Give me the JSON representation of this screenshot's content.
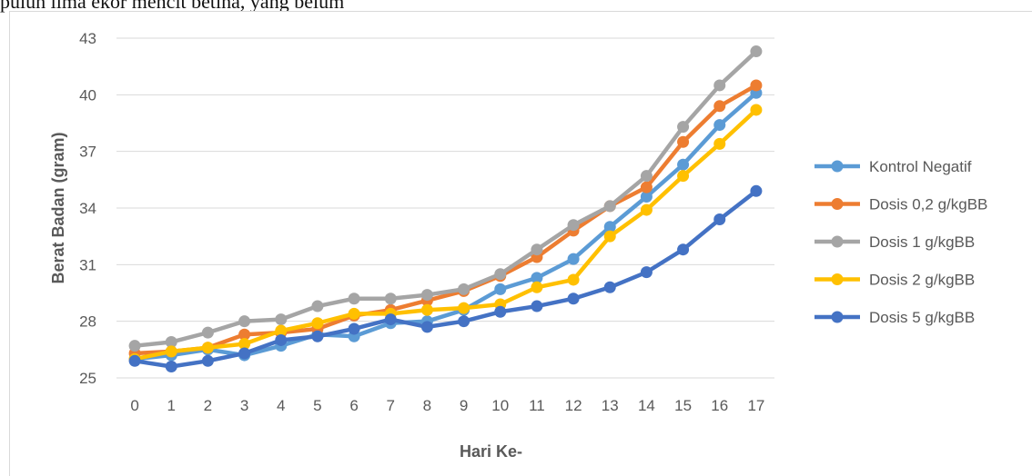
{
  "document": {
    "header_text": "puluh lima ekor mencit betina, yang belum"
  },
  "chart_data": {
    "type": "line",
    "xlabel": "Hari Ke-",
    "ylabel": "Berat Badan (gram)",
    "ylim": [
      25,
      43
    ],
    "yticks": [
      25,
      28,
      31,
      34,
      37,
      40,
      43
    ],
    "grid": true,
    "legend_position": "right",
    "categories": [
      "0",
      "1",
      "2",
      "3",
      "4",
      "5",
      "6",
      "7",
      "8",
      "9",
      "10",
      "11",
      "12",
      "13",
      "14",
      "15",
      "16",
      "17"
    ],
    "series": [
      {
        "name": "Kontrol Negatif",
        "color": "#5B9BD5",
        "values": [
          26.0,
          26.2,
          26.5,
          26.2,
          26.7,
          27.3,
          27.2,
          27.9,
          28.0,
          28.6,
          29.7,
          30.3,
          31.3,
          33.0,
          34.6,
          36.3,
          38.4,
          40.1
        ]
      },
      {
        "name": "Dosis 0,2 g/kgBB",
        "color": "#ED7D31",
        "values": [
          26.3,
          26.4,
          26.6,
          27.3,
          27.4,
          27.6,
          28.3,
          28.6,
          29.1,
          29.6,
          30.4,
          31.4,
          32.8,
          34.1,
          35.1,
          37.5,
          39.4,
          40.5
        ]
      },
      {
        "name": "Dosis 1 g/kgBB",
        "color": "#A5A5A5",
        "values": [
          26.7,
          26.9,
          27.4,
          28.0,
          28.1,
          28.8,
          29.2,
          29.2,
          29.4,
          29.7,
          30.5,
          31.8,
          33.1,
          34.1,
          35.7,
          38.3,
          40.5,
          42.3
        ]
      },
      {
        "name": "Dosis 2 g/kgBB",
        "color": "#FFC000",
        "values": [
          26.0,
          26.4,
          26.6,
          26.8,
          27.5,
          27.9,
          28.4,
          28.4,
          28.6,
          28.7,
          28.9,
          29.8,
          30.2,
          32.5,
          33.9,
          35.7,
          37.4,
          39.2
        ]
      },
      {
        "name": "Dosis 5 g/kgBB",
        "color": "#4472C4",
        "values": [
          25.9,
          25.6,
          25.9,
          26.3,
          27.0,
          27.2,
          27.6,
          28.1,
          27.7,
          28.0,
          28.5,
          28.8,
          29.2,
          29.8,
          30.6,
          31.8,
          33.4,
          34.9
        ]
      }
    ]
  }
}
